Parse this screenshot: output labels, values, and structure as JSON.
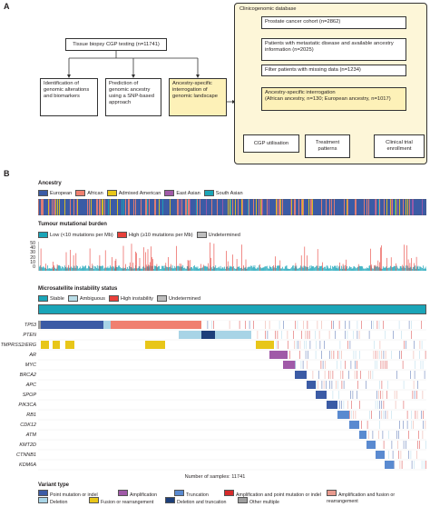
{
  "panelA": {
    "letter": "A",
    "tissue_box": "Tissue biopsy CGP testing (n=11741)",
    "branches": [
      "Identification of genomic alterations and biomarkers",
      "Prediction of genomic ancestry using a SNP-based approach",
      "Ancestry-specific interrogation of genomic landscape"
    ],
    "db_title": "Clinicogenomic database",
    "db_steps": [
      "Prostate cancer cohort (n=2862)",
      "Patients with metastatic disease and available ancestry information (n=2025)",
      "Filter patients with missing data (n=1234)"
    ],
    "interrogation_title": "Ancestry-specific interrogation",
    "interrogation_detail": "(African ancestry, n=130; European ancestry, n=1017)",
    "outcomes": [
      "CGP utilisation",
      "Treatment patterns",
      "Clinical trial enrollment"
    ]
  },
  "panelB": {
    "letter": "B",
    "ancestry": {
      "title": "Ancestry",
      "legend": [
        {
          "label": "European",
          "color": "#3b5ba5"
        },
        {
          "label": "African",
          "color": "#f08070"
        },
        {
          "label": "Admixed American",
          "color": "#e8c619"
        },
        {
          "label": "East Asian",
          "color": "#a05aa8"
        },
        {
          "label": "South Asian",
          "color": "#1aa5b8"
        }
      ]
    },
    "tmb": {
      "title": "Tumour mutational burden",
      "legend": [
        {
          "label": "Low (<10 mutations per Mb)",
          "color": "#1aa5b8"
        },
        {
          "label": "High (≥10 mutations per Mb)",
          "color": "#e8403a"
        },
        {
          "label": "Undetermined",
          "color": "#bdbdbd"
        }
      ],
      "y_ticks": [
        "50",
        "40",
        "30",
        "20",
        "10",
        "0"
      ]
    },
    "msi": {
      "title": "Microsatellite instability status",
      "legend": [
        {
          "label": "Stable",
          "color": "#1aa5b8"
        },
        {
          "label": "Ambiguous",
          "color": "#b9dde7"
        },
        {
          "label": "High instability",
          "color": "#e8403a"
        },
        {
          "label": "Undetermined",
          "color": "#bdbdbd"
        }
      ]
    },
    "genes": [
      "TP53",
      "PTEN",
      "TMPRSS2/ERG",
      "AR",
      "MYC",
      "BRCA2",
      "APC",
      "SPOP",
      "PIK3CA",
      "RB1",
      "CDK12",
      "ATM",
      "KMT2D",
      "CTNNB1",
      "KDM6A"
    ],
    "sample_count_label": "Number of samples: 11741",
    "variant_type": {
      "title": "Variant type",
      "items": [
        {
          "label": "Point mutation or indel",
          "color": "#3b5ba5"
        },
        {
          "label": "Amplification",
          "color": "#a05aa8"
        },
        {
          "label": "Truncation",
          "color": "#5a8ad0"
        },
        {
          "label": "Amplification and point mutation or indel",
          "color": "#d62b2b"
        },
        {
          "label": "Amplification and fusion or rearrangement",
          "color": "#e89a8e"
        },
        {
          "label": "Deletion",
          "color": "#a8d4e6"
        },
        {
          "label": "Fusion or rearrangement",
          "color": "#e8c619"
        },
        {
          "label": "Deletion and truncation",
          "color": "#1d3f7a"
        },
        {
          "label": "Other multiple",
          "color": "#9e9e9e"
        }
      ]
    }
  }
}
